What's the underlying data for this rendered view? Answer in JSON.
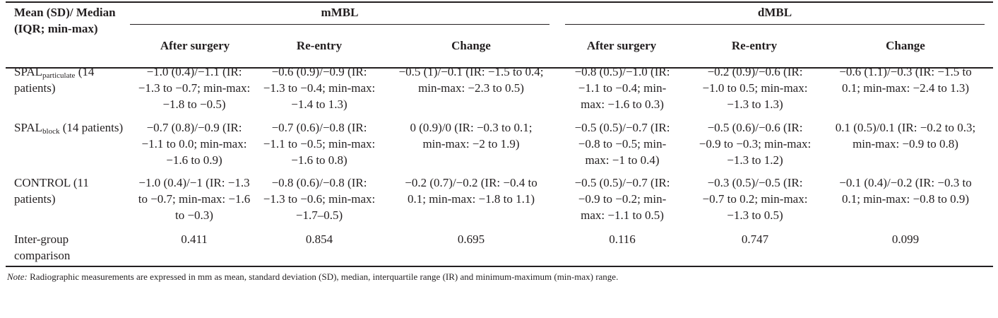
{
  "table": {
    "stub_header": "Mean (SD)/ Median (IQR; min-max)",
    "group_headers": [
      "mMBL",
      "dMBL"
    ],
    "column_headers": [
      "After surgery",
      "Re-entry",
      "Change",
      "After surgery",
      "Re-entry",
      "Change"
    ],
    "rows": [
      {
        "label_main": "SPAL",
        "label_sub": "particulate",
        "label_rest": " (14 patients)",
        "cells": [
          "−1.0 (0.4)/−1.1 (IR: −1.3 to −0.7; min-max: −1.8 to −0.5)",
          "−0.6 (0.9)/−0.9 (IR: −1.3 to −0.4; min-max: −1.4 to 1.3)",
          "−0.5 (1)/−0.1 (IR: −1.5 to 0.4; min-max: −2.3 to 0.5)",
          "−0.8 (0.5)/−1.0 (IR: −1.1 to −0.4; min-max: −1.6 to 0.3)",
          "−0.2 (0.9)/−0.6 (IR: −1.0 to 0.5; min-max: −1.3 to 1.3)",
          "−0.6 (1.1)/−0.3 (IR: −1.5 to 0.1; min-max: −2.4 to 1.3)"
        ]
      },
      {
        "label_main": "SPAL",
        "label_sub": "block",
        "label_rest": " (14 patients)",
        "cells": [
          "−0.7 (0.8)/−0.9 (IR: −1.1 to 0.0; min-max: −1.6 to 0.9)",
          "−0.7 (0.6)/−0.8 (IR: −1.1 to −0.5; min-max: −1.6 to 0.8)",
          "0 (0.9)/0 (IR: −0.3 to 0.1; min-max: −2 to 1.9)",
          "−0.5 (0.5)/−0.7 (IR: −0.8 to −0.5; min-max: −1 to 0.4)",
          "−0.5 (0.6)/−0.6 (IR: −0.9 to −0.3; min-max: −1.3 to 1.2)",
          "0.1 (0.5)/0.1 (IR: −0.2 to 0.3; min-max: −0.9 to 0.8)"
        ]
      },
      {
        "label_main": "CONTROL (11 patients)",
        "label_sub": "",
        "label_rest": "",
        "cells": [
          "−1.0 (0.4)/−1 (IR: −1.3 to −0.7; min-max: −1.6 to −0.3)",
          "−0.8 (0.6)/−0.8 (IR: −1.3 to −0.6; min-max: −1.7–0.5)",
          "−0.2 (0.7)/−0.2 (IR: −0.4 to 0.1; min-max: −1.8 to 1.1)",
          "−0.5 (0.5)/−0.7 (IR: −0.9 to −0.2; min-max: −1.1 to 0.5)",
          "−0.3 (0.5)/−0.5 (IR: −0.7 to 0.2; min-max: −1.3 to 0.5)",
          "−0.1 (0.4)/−0.2 (IR: −0.3 to 0.1; min-max: −0.8 to 0.9)"
        ]
      },
      {
        "label_main": "Inter-group comparison",
        "label_sub": "",
        "label_rest": "",
        "cells": [
          "0.411",
          "0.854",
          "0.695",
          "0.116",
          "0.747",
          "0.099"
        ]
      }
    ],
    "note_label": "Note:",
    "note_text": " Radiographic measurements are expressed in mm as mean, standard deviation (SD), median, interquartile range (IR) and minimum-maximum (min-max) range."
  }
}
